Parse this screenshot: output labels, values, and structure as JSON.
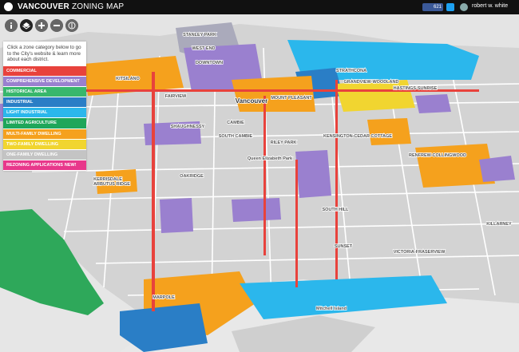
{
  "header": {
    "title_bold": "VANCOUVER",
    "title_rest": "ZONING MAP",
    "facebook_count": "621",
    "user_name": "robert w. white"
  },
  "legend": {
    "intro": "Click a zone category below to go to the City's website & learn more about each district.",
    "items": [
      {
        "label": "COMMERCIAL",
        "color": "#e8423c"
      },
      {
        "label": "COMPREHENSIVE DEVELOPMENT",
        "color": "#9a80cf"
      },
      {
        "label": "HISTORICAL AREA",
        "color": "#38b76c"
      },
      {
        "label": "INDUSTRIAL",
        "color": "#2a7ec6"
      },
      {
        "label": "LIGHT INDUSTRIAL",
        "color": "#2bb7ec"
      },
      {
        "label": "LIMITED AGRICULTURE",
        "color": "#1ea65a"
      },
      {
        "label": "MULTI-FAMILY DWELLING",
        "color": "#f5a11d"
      },
      {
        "label": "TWO-FAMILY DWELLING",
        "color": "#f1d530"
      },
      {
        "label": "ONE-FAMILY DWELLING",
        "color": "#c4c4c4"
      },
      {
        "label": "REZONING APPLICATIONS",
        "color": "#e8388b",
        "badge": "NEW!"
      }
    ]
  },
  "map_labels": [
    "STANLEY PARK",
    "WEST END",
    "DOWNTOWN",
    "STRATHCONA",
    "GRANDVIEW-WOODLAND",
    "HASTINGS-SUNRISE",
    "KITSILANO",
    "FAIRVIEW",
    "Vancouver",
    "MOUNT PLEASANT",
    "SHAUGHNESSY",
    "CAMBIE",
    "SOUTH CAMBIE",
    "RILEY PARK",
    "KENSINGTON-CEDAR COTTAGE",
    "RENFREW-COLLINGWOOD",
    "ARBUTUS RIDGE",
    "Queen Elizabeth Park",
    "KERRISDALE",
    "OAKRIDGE",
    "SOUTH HILL",
    "KILLARNEY",
    "SUNSET",
    "VICTORIA-FRASERVIEW",
    "MARPOLE",
    "Mitchell Island"
  ]
}
